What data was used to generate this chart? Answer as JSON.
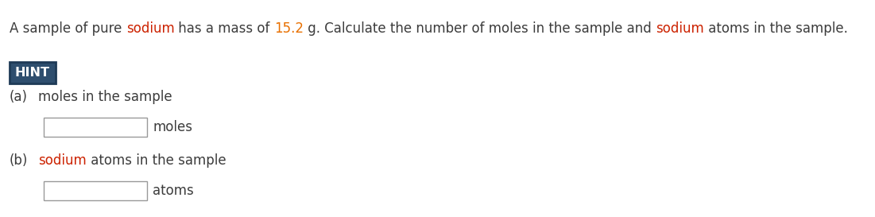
{
  "bg_color": "#ffffff",
  "title_parts": [
    {
      "text": "A sample of pure ",
      "color": "#3c3c3c"
    },
    {
      "text": "sodium",
      "color": "#cc2200"
    },
    {
      "text": " has a mass of ",
      "color": "#3c3c3c"
    },
    {
      "text": "15.2",
      "color": "#e87000"
    },
    {
      "text": " g. Calculate the number of moles in the sample and ",
      "color": "#3c3c3c"
    },
    {
      "text": "sodium",
      "color": "#cc2200"
    },
    {
      "text": " atoms in the sample.",
      "color": "#3c3c3c"
    }
  ],
  "hint_text": "HINT",
  "hint_bg": "#2e4e6e",
  "hint_border": "#1e3a56",
  "hint_text_color": "#ffffff",
  "part_a_label": "(a)",
  "part_a_desc": [
    {
      "text": "moles in the sample",
      "color": "#3c3c3c"
    }
  ],
  "part_a_unit": "moles",
  "part_b_label": "(b)",
  "part_b_desc": [
    {
      "text": "sodium",
      "color": "#cc2200"
    },
    {
      "text": " atoms in the sample",
      "color": "#3c3c3c"
    }
  ],
  "part_b_unit": "atoms",
  "font_size": 12,
  "font_size_hint": 11.5
}
